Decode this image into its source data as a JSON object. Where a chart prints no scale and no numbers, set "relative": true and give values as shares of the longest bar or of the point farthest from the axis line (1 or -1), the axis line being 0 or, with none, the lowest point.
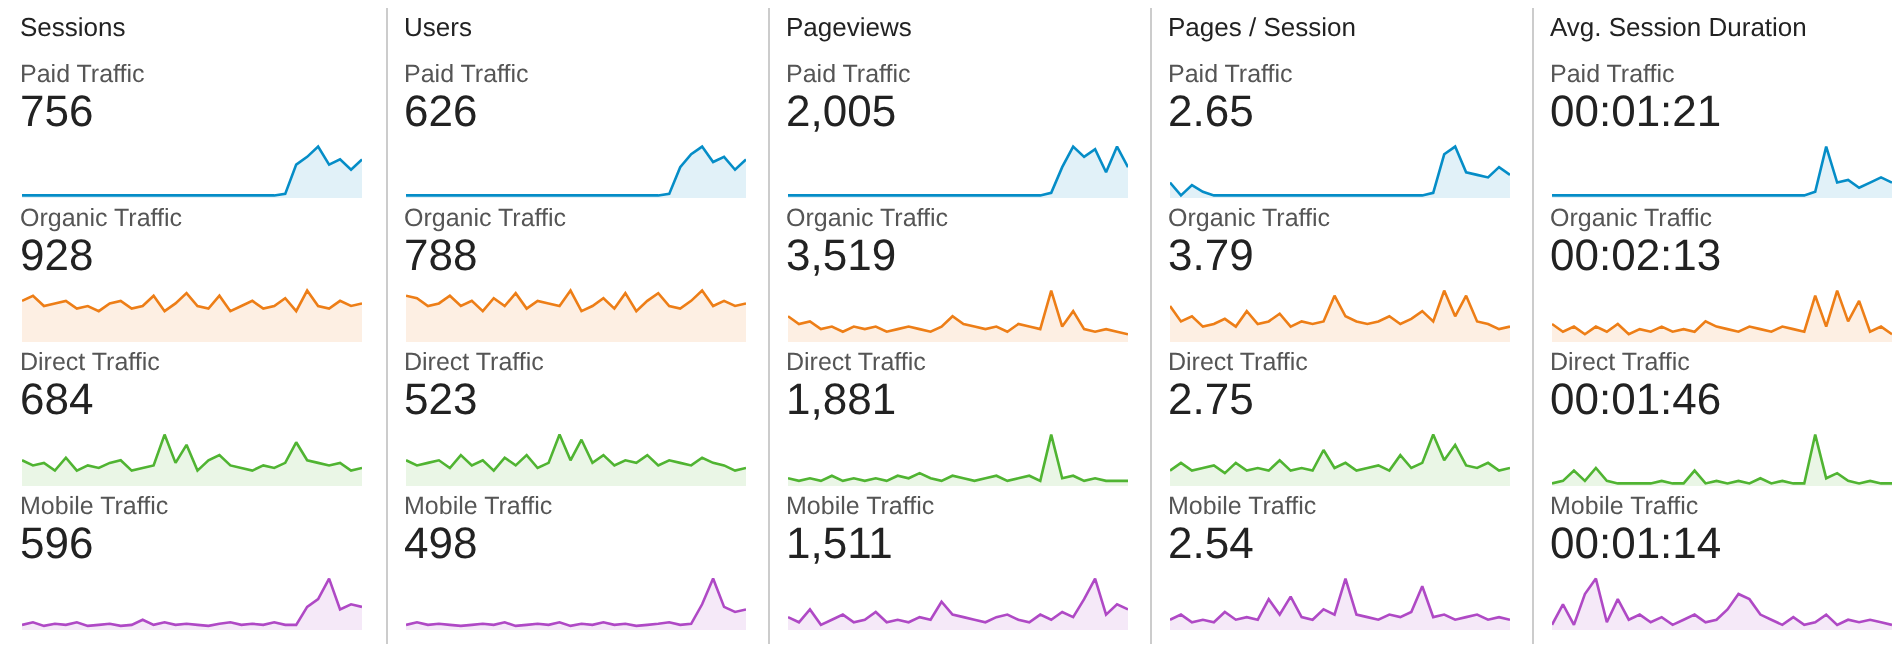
{
  "chart_data": [
    {
      "type": "area",
      "title": "Sessions",
      "subtitle": "Paid Traffic",
      "annotations": [
        "756"
      ],
      "relative": true,
      "color": "#058dc7",
      "categories": [
        null,
        null,
        null,
        null,
        null,
        null,
        null,
        null,
        null,
        null,
        null,
        null,
        null,
        null,
        null,
        null,
        null,
        null,
        null,
        null,
        null,
        null,
        null,
        null,
        null,
        null,
        null,
        null,
        null,
        null,
        null,
        null
      ],
      "values": [
        0.05,
        0.05,
        0.05,
        0.05,
        0.05,
        0.05,
        0.05,
        0.05,
        0.05,
        0.05,
        0.05,
        0.05,
        0.05,
        0.05,
        0.05,
        0.05,
        0.05,
        0.05,
        0.05,
        0.05,
        0.05,
        0.05,
        0.05,
        0.05,
        0.08,
        0.65,
        0.8,
        1,
        0.65,
        0.75,
        0.55,
        0.75
      ]
    },
    {
      "type": "area",
      "subtitle": "Organic Traffic",
      "annotations": [
        "928"
      ],
      "relative": true,
      "color": "#ed7e17",
      "categories": [
        null,
        null,
        null,
        null,
        null,
        null,
        null,
        null,
        null,
        null,
        null,
        null,
        null,
        null,
        null,
        null,
        null,
        null,
        null,
        null,
        null,
        null,
        null,
        null,
        null,
        null,
        null,
        null,
        null,
        null,
        null,
        null
      ],
      "values": [
        0.8,
        0.9,
        0.7,
        0.75,
        0.8,
        0.65,
        0.7,
        0.6,
        0.75,
        0.8,
        0.65,
        0.7,
        0.9,
        0.6,
        0.75,
        0.95,
        0.7,
        0.65,
        0.9,
        0.6,
        0.7,
        0.8,
        0.65,
        0.7,
        0.85,
        0.6,
        1,
        0.7,
        0.65,
        0.8,
        0.7,
        0.75
      ]
    },
    {
      "type": "area",
      "subtitle": "Direct Traffic",
      "annotations": [
        "684"
      ],
      "relative": true,
      "color": "#50b432",
      "categories": [
        null,
        null,
        null,
        null,
        null,
        null,
        null,
        null,
        null,
        null,
        null,
        null,
        null,
        null,
        null,
        null,
        null,
        null,
        null,
        null,
        null,
        null,
        null,
        null,
        null,
        null,
        null,
        null,
        null,
        null,
        null,
        null
      ],
      "values": [
        0.5,
        0.4,
        0.45,
        0.3,
        0.55,
        0.3,
        0.4,
        0.35,
        0.45,
        0.5,
        0.3,
        0.35,
        0.4,
        1,
        0.45,
        0.8,
        0.3,
        0.5,
        0.6,
        0.4,
        0.35,
        0.3,
        0.4,
        0.35,
        0.45,
        0.85,
        0.5,
        0.45,
        0.4,
        0.45,
        0.3,
        0.35
      ]
    },
    {
      "type": "area",
      "subtitle": "Mobile Traffic",
      "annotations": [
        "596"
      ],
      "relative": true,
      "color": "#af49c5",
      "categories": [
        null,
        null,
        null,
        null,
        null,
        null,
        null,
        null,
        null,
        null,
        null,
        null,
        null,
        null,
        null,
        null,
        null,
        null,
        null,
        null,
        null,
        null,
        null,
        null,
        null,
        null,
        null,
        null,
        null,
        null,
        null,
        null
      ],
      "values": [
        0.1,
        0.15,
        0.08,
        0.12,
        0.1,
        0.15,
        0.08,
        0.1,
        0.12,
        0.08,
        0.1,
        0.2,
        0.1,
        0.15,
        0.1,
        0.12,
        0.1,
        0.08,
        0.12,
        0.15,
        0.1,
        0.12,
        0.1,
        0.15,
        0.1,
        0.1,
        0.45,
        0.6,
        1,
        0.4,
        0.5,
        0.45
      ]
    },
    {
      "type": "area",
      "title": "Users",
      "subtitle": "Paid Traffic",
      "annotations": [
        "626"
      ],
      "relative": true,
      "color": "#058dc7",
      "categories": [
        null,
        null,
        null,
        null,
        null,
        null,
        null,
        null,
        null,
        null,
        null,
        null,
        null,
        null,
        null,
        null,
        null,
        null,
        null,
        null,
        null,
        null,
        null,
        null,
        null,
        null,
        null,
        null,
        null,
        null,
        null,
        null
      ],
      "values": [
        0.05,
        0.05,
        0.05,
        0.05,
        0.05,
        0.05,
        0.05,
        0.05,
        0.05,
        0.05,
        0.05,
        0.05,
        0.05,
        0.05,
        0.05,
        0.05,
        0.05,
        0.05,
        0.05,
        0.05,
        0.05,
        0.05,
        0.05,
        0.05,
        0.08,
        0.6,
        0.85,
        1,
        0.7,
        0.8,
        0.55,
        0.75
      ]
    },
    {
      "type": "area",
      "subtitle": "Organic Traffic",
      "annotations": [
        "788"
      ],
      "relative": true,
      "color": "#ed7e17",
      "categories": [
        null,
        null,
        null,
        null,
        null,
        null,
        null,
        null,
        null,
        null,
        null,
        null,
        null,
        null,
        null,
        null,
        null,
        null,
        null,
        null,
        null,
        null,
        null,
        null,
        null,
        null,
        null,
        null,
        null,
        null,
        null,
        null
      ],
      "values": [
        0.9,
        0.85,
        0.7,
        0.75,
        0.9,
        0.7,
        0.8,
        0.6,
        0.85,
        0.7,
        0.95,
        0.65,
        0.8,
        0.75,
        0.7,
        1,
        0.6,
        0.7,
        0.85,
        0.65,
        0.95,
        0.6,
        0.8,
        0.95,
        0.7,
        0.65,
        0.8,
        1,
        0.7,
        0.8,
        0.7,
        0.75
      ]
    },
    {
      "type": "area",
      "subtitle": "Direct Traffic",
      "annotations": [
        "523"
      ],
      "relative": true,
      "color": "#50b432",
      "categories": [
        null,
        null,
        null,
        null,
        null,
        null,
        null,
        null,
        null,
        null,
        null,
        null,
        null,
        null,
        null,
        null,
        null,
        null,
        null,
        null,
        null,
        null,
        null,
        null,
        null,
        null,
        null,
        null,
        null,
        null,
        null,
        null
      ],
      "values": [
        0.5,
        0.4,
        0.45,
        0.5,
        0.35,
        0.6,
        0.4,
        0.5,
        0.3,
        0.55,
        0.4,
        0.6,
        0.35,
        0.45,
        1,
        0.5,
        0.9,
        0.45,
        0.6,
        0.4,
        0.5,
        0.45,
        0.6,
        0.4,
        0.5,
        0.45,
        0.4,
        0.55,
        0.45,
        0.4,
        0.3,
        0.35
      ]
    },
    {
      "type": "area",
      "subtitle": "Mobile Traffic",
      "annotations": [
        "498"
      ],
      "relative": true,
      "color": "#af49c5",
      "categories": [
        null,
        null,
        null,
        null,
        null,
        null,
        null,
        null,
        null,
        null,
        null,
        null,
        null,
        null,
        null,
        null,
        null,
        null,
        null,
        null,
        null,
        null,
        null,
        null,
        null,
        null,
        null,
        null,
        null,
        null,
        null,
        null
      ],
      "values": [
        0.1,
        0.15,
        0.1,
        0.12,
        0.1,
        0.08,
        0.1,
        0.12,
        0.1,
        0.15,
        0.08,
        0.1,
        0.12,
        0.1,
        0.15,
        0.08,
        0.12,
        0.1,
        0.15,
        0.1,
        0.12,
        0.08,
        0.1,
        0.12,
        0.15,
        0.1,
        0.12,
        0.5,
        1,
        0.45,
        0.35,
        0.4
      ]
    },
    {
      "type": "area",
      "title": "Pageviews",
      "subtitle": "Paid Traffic",
      "annotations": [
        "2,005"
      ],
      "relative": true,
      "color": "#058dc7",
      "categories": [
        null,
        null,
        null,
        null,
        null,
        null,
        null,
        null,
        null,
        null,
        null,
        null,
        null,
        null,
        null,
        null,
        null,
        null,
        null,
        null,
        null,
        null,
        null,
        null,
        null,
        null,
        null,
        null,
        null,
        null,
        null,
        null
      ],
      "values": [
        0.05,
        0.05,
        0.05,
        0.05,
        0.05,
        0.05,
        0.05,
        0.05,
        0.05,
        0.05,
        0.05,
        0.05,
        0.05,
        0.05,
        0.05,
        0.05,
        0.05,
        0.05,
        0.05,
        0.05,
        0.05,
        0.05,
        0.05,
        0.05,
        0.1,
        0.6,
        1,
        0.8,
        0.95,
        0.5,
        1,
        0.6
      ]
    },
    {
      "type": "area",
      "subtitle": "Organic Traffic",
      "annotations": [
        "3,519"
      ],
      "relative": true,
      "color": "#ed7e17",
      "categories": [
        null,
        null,
        null,
        null,
        null,
        null,
        null,
        null,
        null,
        null,
        null,
        null,
        null,
        null,
        null,
        null,
        null,
        null,
        null,
        null,
        null,
        null,
        null,
        null,
        null,
        null,
        null,
        null,
        null,
        null,
        null,
        null
      ],
      "values": [
        0.5,
        0.35,
        0.4,
        0.25,
        0.3,
        0.2,
        0.3,
        0.25,
        0.3,
        0.2,
        0.25,
        0.3,
        0.25,
        0.2,
        0.3,
        0.5,
        0.35,
        0.3,
        0.25,
        0.3,
        0.2,
        0.35,
        0.3,
        0.25,
        1,
        0.3,
        0.6,
        0.25,
        0.2,
        0.25,
        0.2,
        0.15
      ]
    },
    {
      "type": "area",
      "subtitle": "Direct Traffic",
      "annotations": [
        "1,881"
      ],
      "relative": true,
      "color": "#50b432",
      "categories": [
        null,
        null,
        null,
        null,
        null,
        null,
        null,
        null,
        null,
        null,
        null,
        null,
        null,
        null,
        null,
        null,
        null,
        null,
        null,
        null,
        null,
        null,
        null,
        null,
        null,
        null,
        null,
        null,
        null,
        null,
        null,
        null
      ],
      "values": [
        0.15,
        0.1,
        0.15,
        0.1,
        0.2,
        0.1,
        0.15,
        0.1,
        0.15,
        0.1,
        0.2,
        0.15,
        0.25,
        0.15,
        0.1,
        0.2,
        0.15,
        0.1,
        0.15,
        0.2,
        0.1,
        0.15,
        0.2,
        0.1,
        1,
        0.15,
        0.2,
        0.1,
        0.15,
        0.1,
        0.1,
        0.1
      ]
    },
    {
      "type": "area",
      "subtitle": "Mobile Traffic",
      "annotations": [
        "1,511"
      ],
      "relative": true,
      "color": "#af49c5",
      "categories": [
        null,
        null,
        null,
        null,
        null,
        null,
        null,
        null,
        null,
        null,
        null,
        null,
        null,
        null,
        null,
        null,
        null,
        null,
        null,
        null,
        null,
        null,
        null,
        null,
        null,
        null,
        null,
        null,
        null,
        null,
        null,
        null
      ],
      "values": [
        0.25,
        0.15,
        0.4,
        0.1,
        0.2,
        0.3,
        0.15,
        0.2,
        0.35,
        0.15,
        0.2,
        0.15,
        0.25,
        0.2,
        0.55,
        0.3,
        0.25,
        0.2,
        0.15,
        0.25,
        0.3,
        0.2,
        0.15,
        0.3,
        0.2,
        0.35,
        0.25,
        0.6,
        1,
        0.3,
        0.5,
        0.4
      ]
    },
    {
      "type": "area",
      "title": "Pages / Session",
      "subtitle": "Paid Traffic",
      "annotations": [
        "2.65"
      ],
      "relative": true,
      "color": "#058dc7",
      "categories": [
        null,
        null,
        null,
        null,
        null,
        null,
        null,
        null,
        null,
        null,
        null,
        null,
        null,
        null,
        null,
        null,
        null,
        null,
        null,
        null,
        null,
        null,
        null,
        null,
        null,
        null,
        null,
        null,
        null,
        null,
        null,
        null
      ],
      "values": [
        0.3,
        0.05,
        0.25,
        0.12,
        0.05,
        0.05,
        0.05,
        0.05,
        0.05,
        0.05,
        0.05,
        0.05,
        0.05,
        0.05,
        0.05,
        0.05,
        0.05,
        0.05,
        0.05,
        0.05,
        0.05,
        0.05,
        0.05,
        0.05,
        0.1,
        0.85,
        1,
        0.5,
        0.45,
        0.4,
        0.6,
        0.45
      ]
    },
    {
      "type": "area",
      "subtitle": "Organic Traffic",
      "annotations": [
        "3.79"
      ],
      "relative": true,
      "color": "#ed7e17",
      "categories": [
        null,
        null,
        null,
        null,
        null,
        null,
        null,
        null,
        null,
        null,
        null,
        null,
        null,
        null,
        null,
        null,
        null,
        null,
        null,
        null,
        null,
        null,
        null,
        null,
        null,
        null,
        null,
        null,
        null,
        null,
        null,
        null
      ],
      "values": [
        0.7,
        0.4,
        0.5,
        0.3,
        0.35,
        0.45,
        0.3,
        0.6,
        0.35,
        0.4,
        0.55,
        0.3,
        0.4,
        0.35,
        0.4,
        0.9,
        0.5,
        0.4,
        0.35,
        0.4,
        0.5,
        0.35,
        0.45,
        0.6,
        0.4,
        1,
        0.5,
        0.9,
        0.4,
        0.35,
        0.25,
        0.3
      ]
    },
    {
      "type": "area",
      "subtitle": "Direct Traffic",
      "annotations": [
        "2.75"
      ],
      "relative": true,
      "color": "#50b432",
      "categories": [
        null,
        null,
        null,
        null,
        null,
        null,
        null,
        null,
        null,
        null,
        null,
        null,
        null,
        null,
        null,
        null,
        null,
        null,
        null,
        null,
        null,
        null,
        null,
        null,
        null,
        null,
        null,
        null,
        null,
        null,
        null,
        null
      ],
      "values": [
        0.3,
        0.45,
        0.3,
        0.35,
        0.4,
        0.25,
        0.45,
        0.3,
        0.35,
        0.3,
        0.5,
        0.3,
        0.35,
        0.3,
        0.7,
        0.35,
        0.45,
        0.3,
        0.35,
        0.4,
        0.3,
        0.6,
        0.35,
        0.45,
        1,
        0.5,
        0.8,
        0.4,
        0.35,
        0.45,
        0.3,
        0.35
      ]
    },
    {
      "type": "area",
      "subtitle": "Mobile Traffic",
      "annotations": [
        "2.54"
      ],
      "relative": true,
      "color": "#af49c5",
      "categories": [
        null,
        null,
        null,
        null,
        null,
        null,
        null,
        null,
        null,
        null,
        null,
        null,
        null,
        null,
        null,
        null,
        null,
        null,
        null,
        null,
        null,
        null,
        null,
        null,
        null,
        null,
        null,
        null,
        null,
        null,
        null,
        null
      ],
      "values": [
        0.2,
        0.3,
        0.15,
        0.2,
        0.15,
        0.35,
        0.2,
        0.25,
        0.2,
        0.6,
        0.3,
        0.65,
        0.25,
        0.2,
        0.4,
        0.3,
        1,
        0.3,
        0.25,
        0.2,
        0.3,
        0.25,
        0.35,
        0.85,
        0.25,
        0.3,
        0.2,
        0.25,
        0.3,
        0.2,
        0.25,
        0.2
      ]
    },
    {
      "type": "area",
      "title": "Avg. Session Duration",
      "subtitle": "Paid Traffic",
      "annotations": [
        "00:01:21"
      ],
      "relative": true,
      "color": "#058dc7",
      "categories": [
        null,
        null,
        null,
        null,
        null,
        null,
        null,
        null,
        null,
        null,
        null,
        null,
        null,
        null,
        null,
        null,
        null,
        null,
        null,
        null,
        null,
        null,
        null,
        null,
        null,
        null,
        null,
        null,
        null,
        null,
        null,
        null
      ],
      "values": [
        0.05,
        0.05,
        0.05,
        0.05,
        0.05,
        0.05,
        0.05,
        0.05,
        0.05,
        0.05,
        0.05,
        0.05,
        0.05,
        0.05,
        0.05,
        0.05,
        0.05,
        0.05,
        0.05,
        0.05,
        0.05,
        0.05,
        0.05,
        0.05,
        0.12,
        1,
        0.3,
        0.35,
        0.2,
        0.3,
        0.4,
        0.3
      ]
    },
    {
      "type": "area",
      "subtitle": "Organic Traffic",
      "annotations": [
        "00:02:13"
      ],
      "relative": true,
      "color": "#ed7e17",
      "categories": [
        null,
        null,
        null,
        null,
        null,
        null,
        null,
        null,
        null,
        null,
        null,
        null,
        null,
        null,
        null,
        null,
        null,
        null,
        null,
        null,
        null,
        null,
        null,
        null,
        null,
        null,
        null,
        null,
        null,
        null,
        null,
        null
      ],
      "values": [
        0.35,
        0.2,
        0.3,
        0.15,
        0.3,
        0.2,
        0.35,
        0.15,
        0.25,
        0.2,
        0.3,
        0.2,
        0.25,
        0.2,
        0.4,
        0.3,
        0.25,
        0.2,
        0.3,
        0.25,
        0.2,
        0.3,
        0.25,
        0.2,
        0.9,
        0.3,
        1,
        0.4,
        0.8,
        0.2,
        0.3,
        0.15
      ]
    },
    {
      "type": "area",
      "subtitle": "Direct Traffic",
      "annotations": [
        "00:01:46"
      ],
      "relative": true,
      "color": "#50b432",
      "categories": [
        null,
        null,
        null,
        null,
        null,
        null,
        null,
        null,
        null,
        null,
        null,
        null,
        null,
        null,
        null,
        null,
        null,
        null,
        null,
        null,
        null,
        null,
        null,
        null,
        null,
        null,
        null,
        null,
        null,
        null,
        null,
        null
      ],
      "values": [
        0.05,
        0.1,
        0.3,
        0.1,
        0.35,
        0.1,
        0.05,
        0.05,
        0.05,
        0.05,
        0.1,
        0.05,
        0.05,
        0.3,
        0.05,
        0.1,
        0.05,
        0.1,
        0.05,
        0.15,
        0.05,
        0.1,
        0.05,
        0.05,
        1,
        0.15,
        0.25,
        0.1,
        0.05,
        0.1,
        0.05,
        0.05
      ]
    },
    {
      "type": "area",
      "subtitle": "Mobile Traffic",
      "annotations": [
        "00:01:14"
      ],
      "relative": true,
      "color": "#af49c5",
      "categories": [
        null,
        null,
        null,
        null,
        null,
        null,
        null,
        null,
        null,
        null,
        null,
        null,
        null,
        null,
        null,
        null,
        null,
        null,
        null,
        null,
        null,
        null,
        null,
        null,
        null,
        null,
        null,
        null,
        null,
        null,
        null,
        null
      ],
      "values": [
        0.1,
        0.5,
        0.1,
        0.7,
        1,
        0.15,
        0.6,
        0.2,
        0.3,
        0.15,
        0.25,
        0.1,
        0.2,
        0.3,
        0.15,
        0.2,
        0.4,
        0.7,
        0.6,
        0.3,
        0.2,
        0.1,
        0.25,
        0.1,
        0.15,
        0.3,
        0.1,
        0.2,
        0.15,
        0.2,
        0.15,
        0.1
      ]
    }
  ]
}
